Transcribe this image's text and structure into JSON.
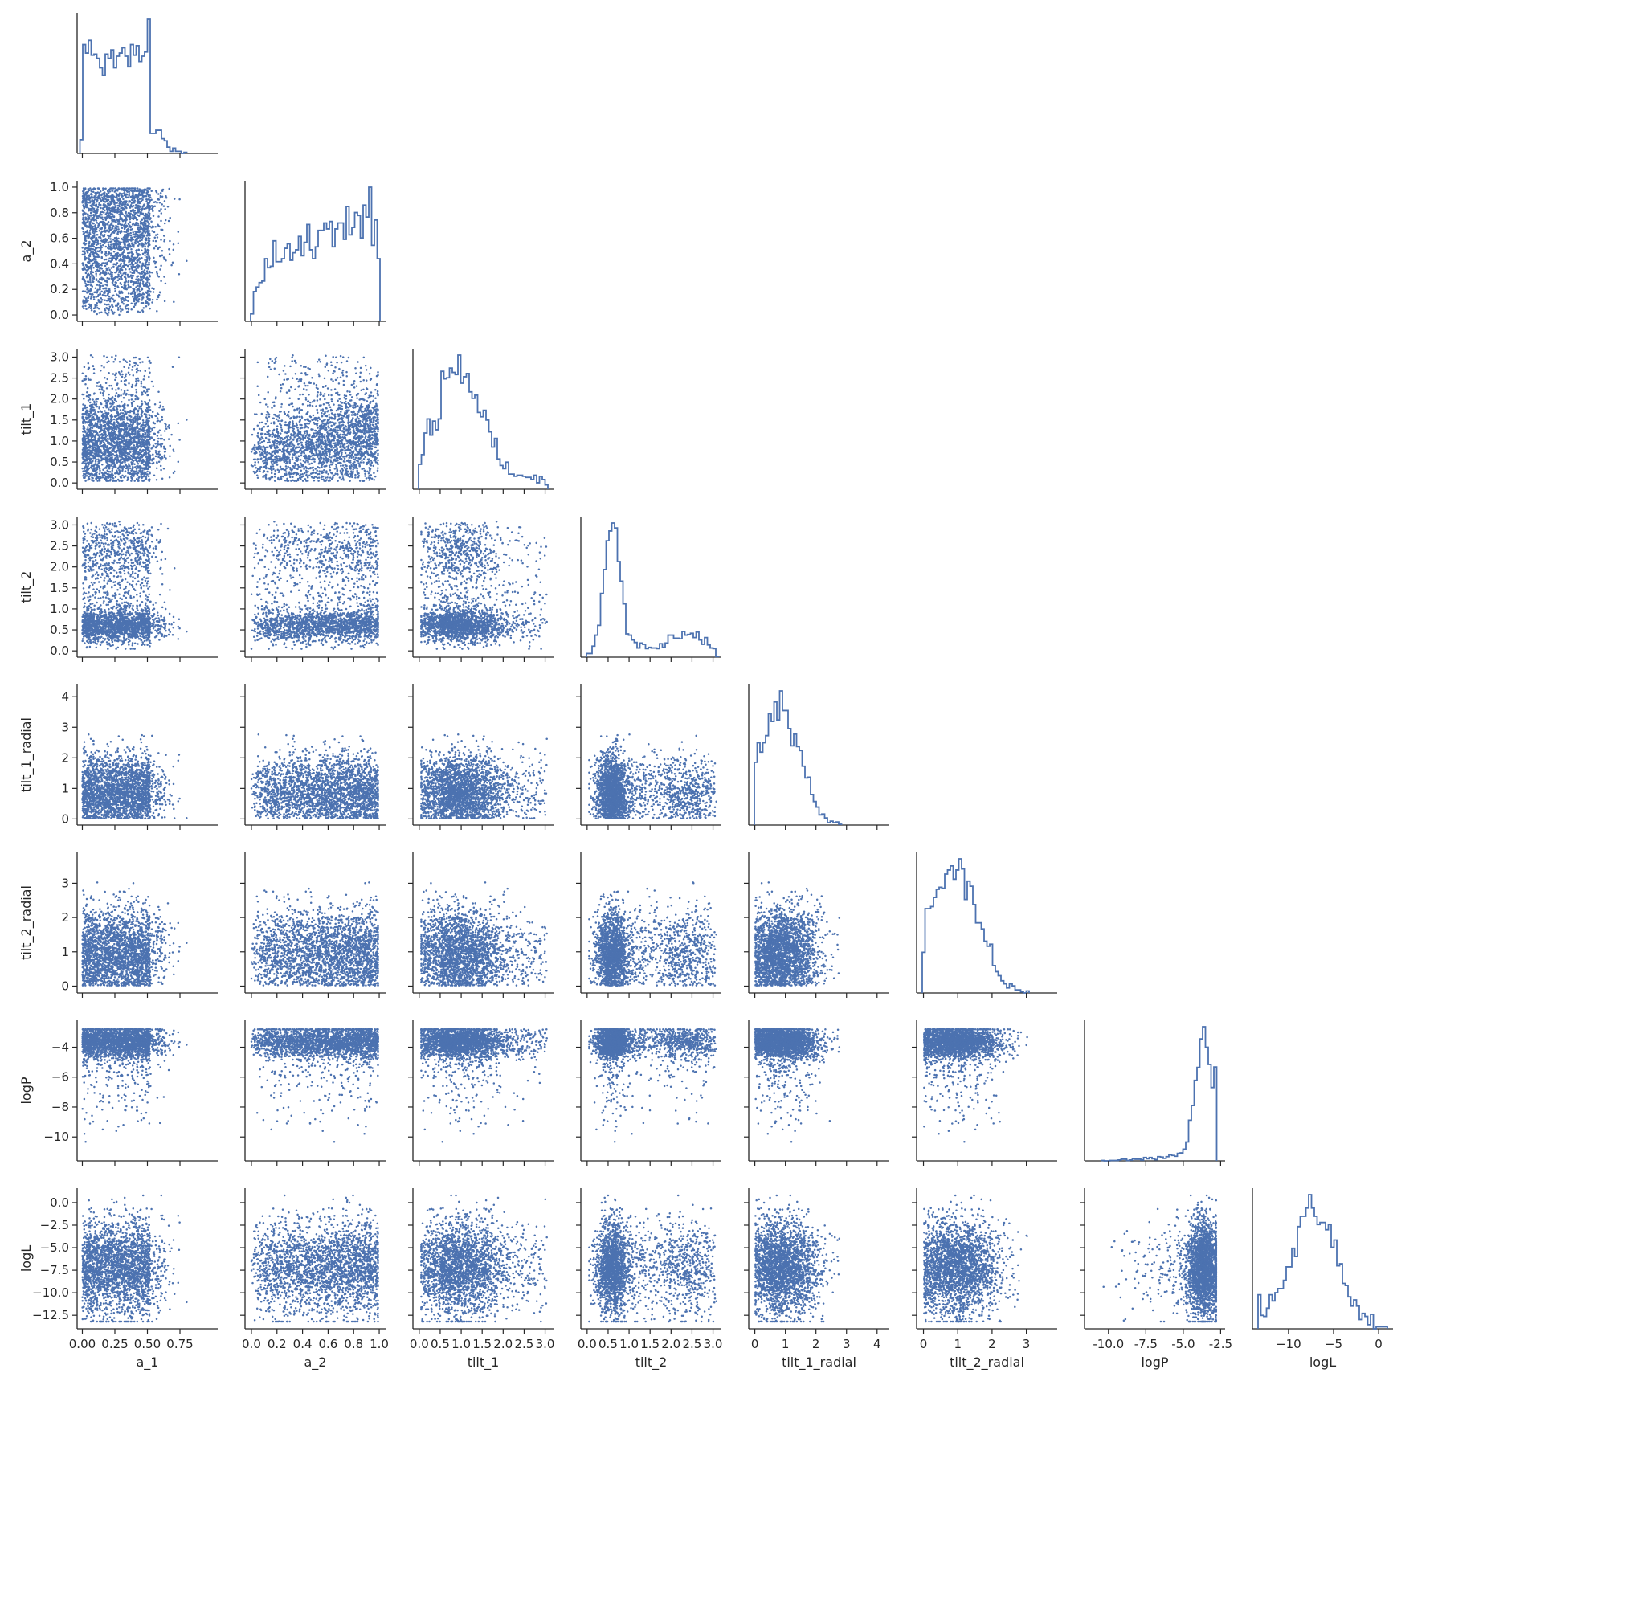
{
  "chart_data": {
    "type": "scatter",
    "layout": "corner",
    "colors": {
      "marker": "#4C72B0",
      "axis": "#262626"
    },
    "variables": [
      {
        "name": "a_1",
        "label": "a_1",
        "ticks": [
          0.0,
          0.25,
          0.5,
          0.75
        ],
        "tick_labels": [
          "0.00",
          "0.25",
          "0.50",
          "0.75"
        ],
        "range": [
          -0.04,
          1.04
        ]
      },
      {
        "name": "a_2",
        "label": "a_2",
        "ticks": [
          0.0,
          0.2,
          0.4,
          0.6,
          0.8,
          1.0
        ],
        "tick_labels": [
          "0.0",
          "0.2",
          "0.4",
          "0.6",
          "0.8",
          "1.0"
        ],
        "range": [
          -0.05,
          1.05
        ]
      },
      {
        "name": "tilt_1",
        "label": "tilt_1",
        "ticks": [
          0.0,
          0.5,
          1.0,
          1.5,
          2.0,
          2.5,
          3.0
        ],
        "tick_labels": [
          "0.0",
          "0.5",
          "1.0",
          "1.5",
          "2.0",
          "2.5",
          "3.0"
        ],
        "range": [
          -0.15,
          3.2
        ]
      },
      {
        "name": "tilt_2",
        "label": "tilt_2",
        "ticks": [
          0.0,
          0.5,
          1.0,
          1.5,
          2.0,
          2.5,
          3.0
        ],
        "tick_labels": [
          "0.0",
          "0.5",
          "1.0",
          "1.5",
          "2.0",
          "2.5",
          "3.0"
        ],
        "range": [
          -0.15,
          3.2
        ]
      },
      {
        "name": "tilt_1_radial",
        "label": "tilt_1_radial",
        "ticks": [
          0,
          1,
          2,
          3,
          4
        ],
        "tick_labels": [
          "0",
          "1",
          "2",
          "3",
          "4"
        ],
        "range": [
          -0.2,
          4.4
        ]
      },
      {
        "name": "tilt_2_radial",
        "label": "tilt_2_radial",
        "ticks": [
          0,
          1,
          2,
          3
        ],
        "tick_labels": [
          "0",
          "1",
          "2",
          "3"
        ],
        "range": [
          -0.2,
          3.9
        ]
      },
      {
        "name": "logP",
        "label": "logP",
        "ticks": [
          -10,
          -8,
          -6,
          -4
        ],
        "tick_labels": [
          "-10.0",
          "-7.5",
          "-5.0",
          "-2.5"
        ],
        "xticks": [
          -10.0,
          -7.5,
          -5.0,
          -2.5
        ],
        "yticks": [
          -10,
          -8,
          -6,
          -4
        ],
        "ytick_labels": [
          "−10",
          "−8",
          "−6",
          "−4"
        ],
        "range": [
          -11.6,
          -2.2
        ]
      },
      {
        "name": "logL",
        "label": "logL",
        "ticks": [
          -12.5,
          -10.0,
          -7.5,
          -5.0,
          -2.5,
          0.0
        ],
        "tick_labels": [
          "−12.5",
          "−10.0",
          "−7.5",
          "−5.0",
          "−2.5",
          "0.0"
        ],
        "xticks": [
          -10,
          -5,
          0
        ],
        "xtick_labels": [
          "−10",
          "−5",
          "0"
        ],
        "range": [
          -14.0,
          1.6
        ]
      }
    ],
    "marginals": [
      {
        "variable": "a_1",
        "type": "step-histogram",
        "shape": "flat near 0-0.3, peak near 0.40-0.45, sharp drop at 0.5, tail to 0.85"
      },
      {
        "variable": "a_2",
        "type": "step-histogram",
        "shape": "rises from 0.7 to 1 across 0-0.75, falls steeply to 0.2 at 1.0"
      },
      {
        "variable": "tilt_1",
        "type": "step-histogram",
        "shape": "peak near 0.65, decreasing to ~0 at 3.1"
      },
      {
        "variable": "tilt_2",
        "type": "step-histogram",
        "shape": "sharp peak near 0.6, secondary bump near 2.4"
      },
      {
        "variable": "tilt_1_radial",
        "type": "step-histogram",
        "shape": "peak near 0.8, tail to 4"
      },
      {
        "variable": "tilt_2_radial",
        "type": "step-histogram",
        "shape": "peak near 0.8, tail to 3.5"
      },
      {
        "variable": "logP",
        "type": "step-histogram",
        "shape": "peak near -3.0, long left tail to -11"
      },
      {
        "variable": "logL",
        "type": "step-histogram",
        "shape": "broad peak near -7.5, spans -13 to 1"
      }
    ],
    "pairs": [
      {
        "x": "a_1",
        "y": "a_2",
        "description": "dense for a_1 < 0.5 across a_2 0-1"
      },
      {
        "x": "a_1",
        "y": "tilt_1",
        "description": "dense for a_1 < 0.5, tilt_1 concentrated 0.2-1.5"
      },
      {
        "x": "a_2",
        "y": "tilt_1",
        "description": "positive trend: tilt_1 increases with a_2"
      },
      {
        "x": "a_1",
        "y": "tilt_2",
        "description": "dense band tilt_2 0.3-1.0, secondary band near 2.3"
      },
      {
        "x": "tilt_1",
        "y": "tilt_2",
        "description": "dense low tilt_2 band, secondary cluster near tilt_2 2.4"
      },
      {
        "x": "tilt_2",
        "y": "logP",
        "description": "logP mostly between -6 and -2.8"
      },
      {
        "x": "logP",
        "y": "logL",
        "description": "dense near logP -4 to -3, logL -10 to 0"
      }
    ],
    "samples_note": "scatter points are an approximate visual recreation"
  }
}
